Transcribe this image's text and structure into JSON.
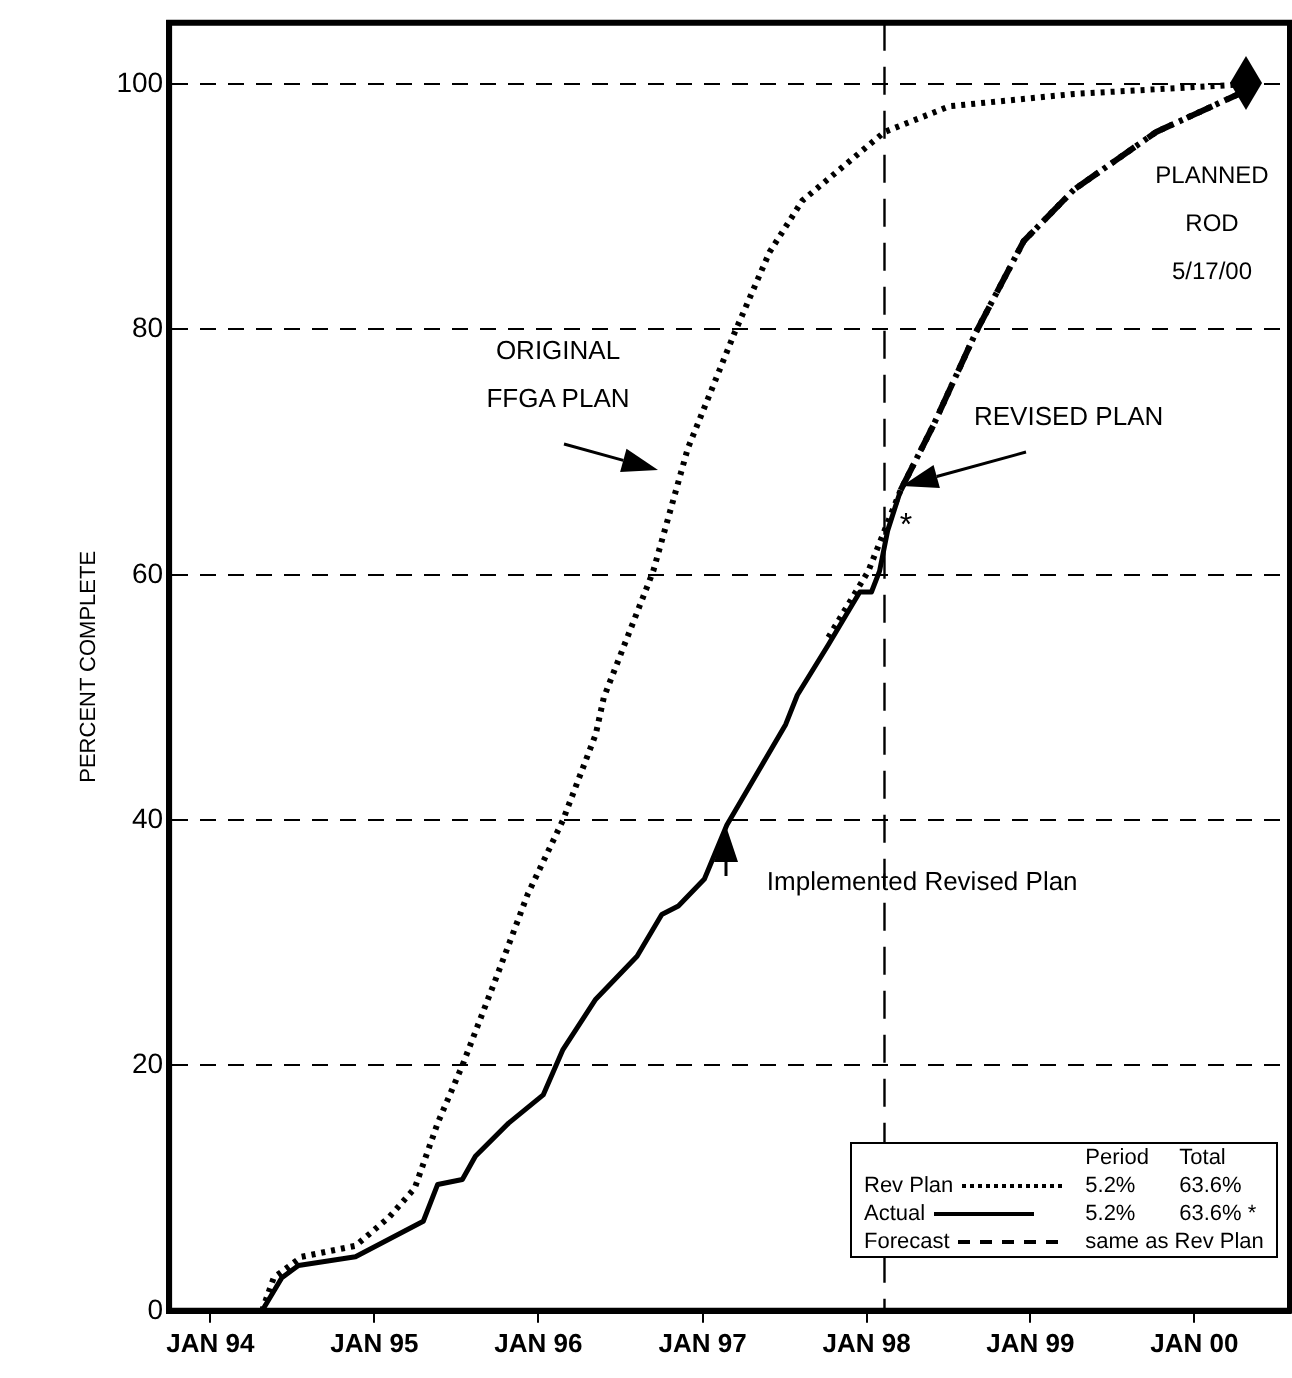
{
  "chart_data": {
    "type": "line",
    "ylabel": "PERCENT COMPLETE",
    "xlim": [
      "1993-10-01",
      "2000-08-01"
    ],
    "xticks": [
      {
        "value": "1994-01-01",
        "label": "JAN 94"
      },
      {
        "value": "1995-01-01",
        "label": "JAN 95"
      },
      {
        "value": "1996-01-01",
        "label": "JAN 96"
      },
      {
        "value": "1997-01-01",
        "label": "JAN 97"
      },
      {
        "value": "1998-01-01",
        "label": "JAN 98"
      },
      {
        "value": "1999-01-01",
        "label": "JAN 99"
      },
      {
        "value": "2000-01-01",
        "label": "JAN 00"
      }
    ],
    "ylim": [
      0,
      105
    ],
    "yticks": [
      0,
      20,
      40,
      60,
      80,
      100
    ],
    "grid": "y",
    "legend": "bottom right",
    "marker": "none",
    "series": [
      {
        "color": "#000000",
        "line_style": "dotted",
        "x": [
          "1994-04-26",
          "1994-05-22",
          "1994-07-23",
          "1994-11-20",
          "1995-02-02",
          "1995-04-01",
          "1995-05-22",
          "1995-07-16",
          "1995-10-01",
          "1995-12-09",
          "1996-02-25",
          "1996-05-08",
          "1996-05-26",
          "1996-09-13",
          "1996-11-29",
          "1997-03-14",
          "1997-05-30",
          "1997-08-11",
          "1998-02-10",
          "1998-07-05",
          "1999-04-08",
          "2000-04-27"
        ],
        "values": [
          0,
          2.7,
          4.4,
          5.3,
          7.6,
          10,
          15.3,
          20,
          27.3,
          34,
          40,
          47,
          50,
          60.3,
          70.3,
          79.8,
          86.3,
          90.5,
          96.1,
          98.2,
          99.2,
          100
        ]
      },
      {
        "name": "Rev Plan",
        "color": "#000000",
        "line_style": "dotted",
        "x": [
          "1997-10-08",
          "1998-01-05",
          "1998-03-18",
          "1998-05-30",
          "1998-09-02",
          "1998-12-17",
          "1999-04-08",
          "1999-10-08",
          "2000-04-27"
        ],
        "values": [
          54.9,
          60.3,
          66.9,
          72.2,
          79.8,
          87.2,
          91.4,
          96.1,
          99.5
        ]
      },
      {
        "name": "Actual",
        "color": "#000000",
        "line_style": "solid",
        "x": [
          "1994-04-26",
          "1994-06-09",
          "1994-07-16",
          "1994-11-20",
          "1995-04-20",
          "1995-05-22",
          "1995-07-16",
          "1995-08-14",
          "1995-10-27",
          "1996-01-12",
          "1996-02-25",
          "1996-05-08",
          "1996-08-08",
          "1996-10-02",
          "1996-11-08",
          "1997-01-05",
          "1997-02-24",
          "1997-07-05",
          "1997-07-31",
          "1997-10-08",
          "1997-12-17",
          "1998-01-12",
          "1998-01-30",
          "1998-02-17",
          "1998-03-18"
        ],
        "values": [
          0,
          2.7,
          3.7,
          4.4,
          7.3,
          10.3,
          10.7,
          12.6,
          15.3,
          17.6,
          21.3,
          25.4,
          28.9,
          32.3,
          33,
          35.2,
          39.6,
          47.8,
          50.2,
          54.3,
          58.6,
          58.6,
          60.3,
          63.6,
          66.9
        ]
      },
      {
        "name": "Forecast",
        "color": "#000000",
        "line_style": "dashed",
        "x": [
          "1998-03-18",
          "1998-05-30",
          "1998-09-02",
          "1998-12-17",
          "1999-04-08",
          "1999-10-08",
          "2000-04-27"
        ],
        "values": [
          66.9,
          72.2,
          79.8,
          87.2,
          91.4,
          96.1,
          99.5
        ]
      }
    ],
    "ref_lines": [
      {
        "axis": "x",
        "value": "1998-02-10",
        "line_style": "dashed",
        "color": "#000000"
      }
    ],
    "annotations": [
      "Period",
      "Total",
      "5.2%",
      "63.6%",
      "5.2%",
      "63.6% *",
      "same as Rev Plan",
      "ORIGINAL FFGA PLAN",
      "*",
      "PLANNED ROD 5/17/00",
      "REVISED PLAN",
      {
        "text": "Implemented Revised Plan",
        "x": "1997-02-24",
        "y": 39.6
      }
    ]
  }
}
